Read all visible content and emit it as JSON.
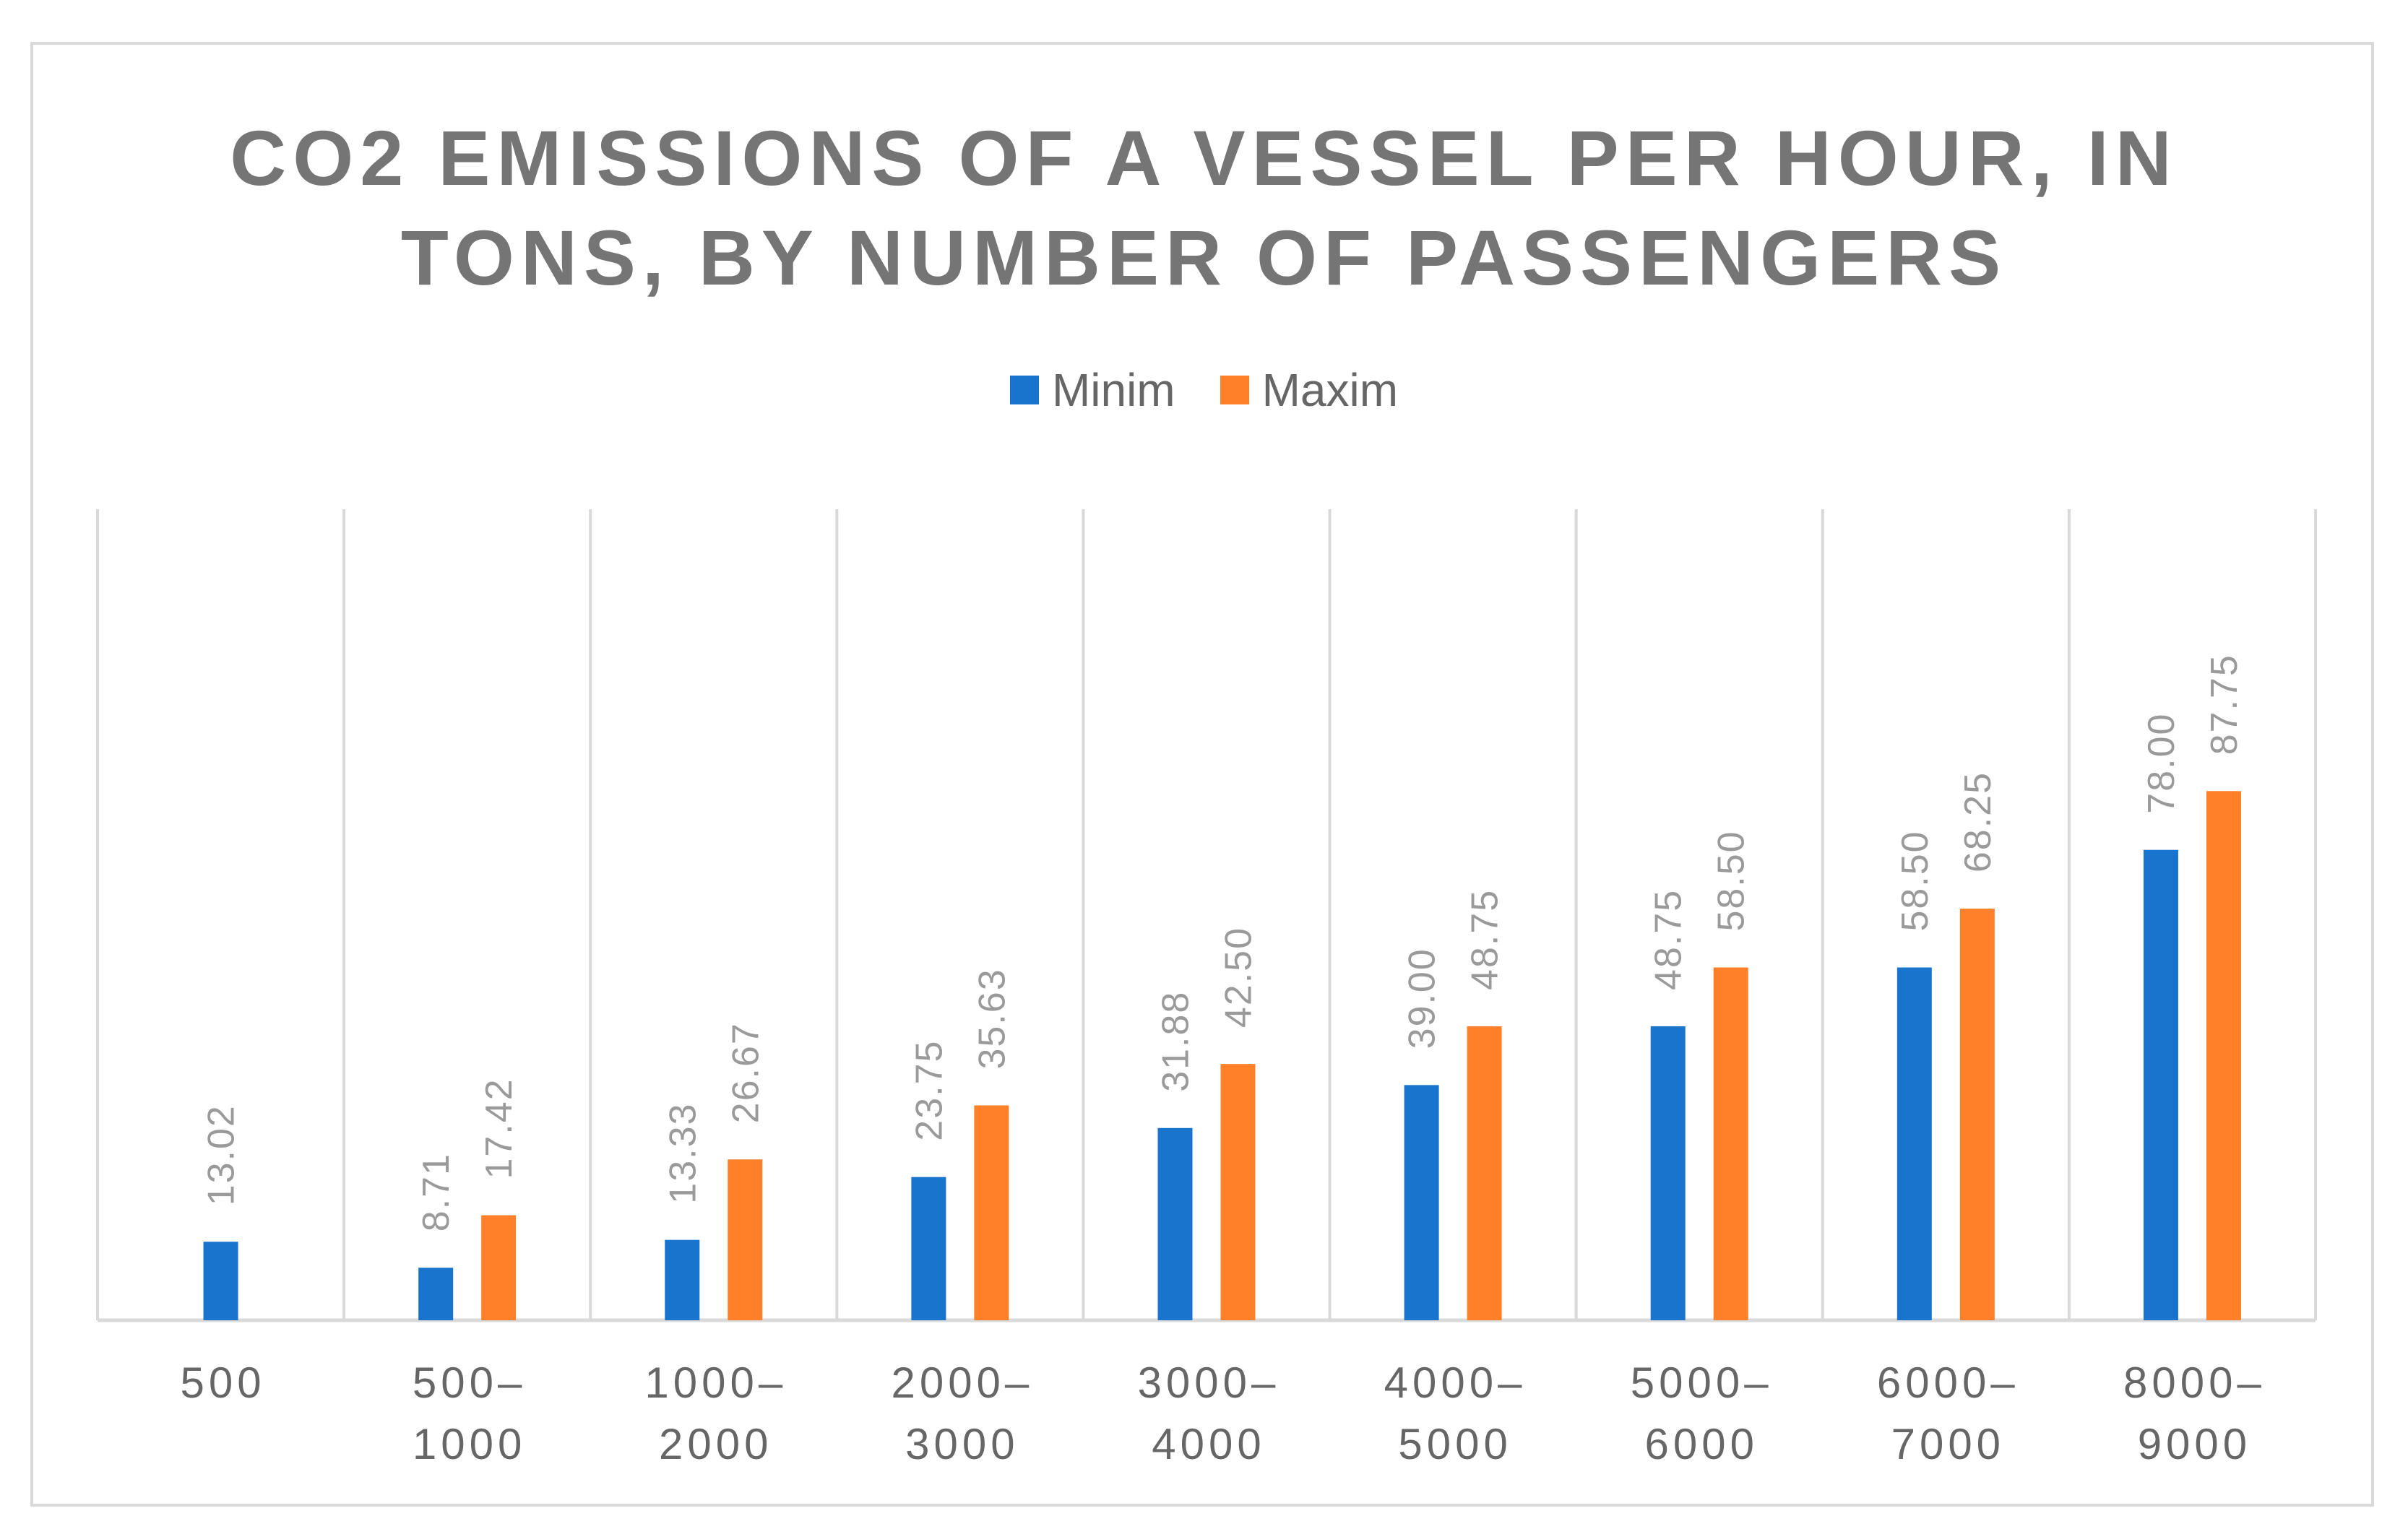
{
  "chart_data": {
    "type": "bar",
    "title": [
      "CO2 EMISSIONS OF A VESSEL PER HOUR, IN",
      "TONS, BY NUMBER OF PASSENGERS"
    ],
    "xlabel": "",
    "ylabel": "",
    "ylim": [
      0,
      100
    ],
    "grid": "vertical category separators",
    "legend_position": "top",
    "categories": [
      [
        "500"
      ],
      [
        "500–",
        "1000"
      ],
      [
        "1000–",
        "2000"
      ],
      [
        "2000–",
        "3000"
      ],
      [
        "3000–",
        "4000"
      ],
      [
        "4000–",
        "5000"
      ],
      [
        "5000–",
        "6000"
      ],
      [
        "6000–",
        "7000"
      ],
      [
        "8000–",
        "9000"
      ]
    ],
    "series": [
      {
        "name": "Minim",
        "color": "#1874CD",
        "values": [
          13.02,
          8.71,
          13.33,
          23.75,
          31.88,
          39.0,
          48.75,
          58.5,
          78.0
        ],
        "labels": [
          "13.02",
          "8.71",
          "13.33",
          "23.75",
          "31.88",
          "39.00",
          "48.75",
          "58.50",
          "78.00"
        ]
      },
      {
        "name": "Maxim",
        "color": "#FF8029",
        "values": [
          null,
          17.42,
          26.67,
          35.63,
          42.5,
          48.75,
          58.5,
          68.25,
          87.75
        ],
        "labels": [
          null,
          "17.42",
          "26.67",
          "35.63",
          "42.50",
          "48.75",
          "58.50",
          "68.25",
          "87.75"
        ]
      }
    ]
  }
}
